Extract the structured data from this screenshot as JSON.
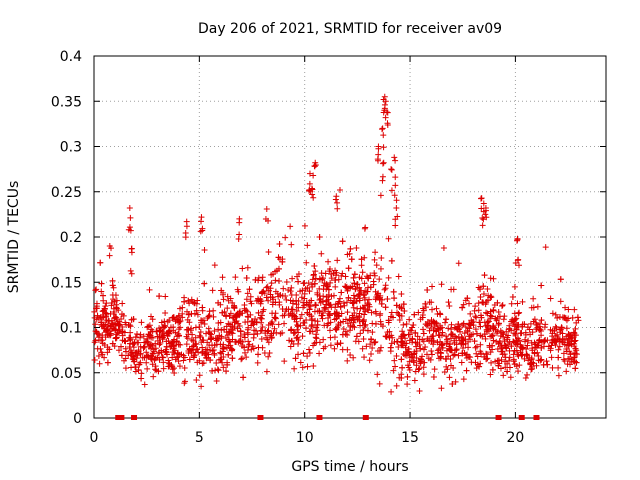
{
  "chart_data": {
    "type": "scatter",
    "title": "Day 206 of 2021, SRMTID for receiver av09",
    "xlabel": "GPS time / hours",
    "ylabel": "SRMTID / TECUs",
    "xlim": [
      0,
      24.3
    ],
    "ylim": [
      0,
      0.4
    ],
    "xticks": [
      0,
      5,
      10,
      15,
      20
    ],
    "xtick_labels": [
      "0",
      "5",
      "10",
      "15",
      "20"
    ],
    "yticks": [
      0,
      0.05,
      0.1,
      0.15,
      0.2,
      0.25,
      0.3,
      0.35,
      0.4
    ],
    "ytick_labels": [
      "0",
      "0.05",
      "0.1",
      "0.15",
      "0.2",
      "0.25",
      "0.3",
      "0.35",
      "0.4"
    ],
    "grid": true,
    "marker": "plus",
    "color": "#dd0000",
    "series": [
      {
        "name": "SRMTID",
        "profile_hours": [
          0,
          0.5,
          1,
          1.5,
          2,
          2.5,
          3,
          3.5,
          4,
          4.5,
          5,
          5.5,
          6,
          6.5,
          7,
          7.5,
          8,
          8.5,
          9,
          9.5,
          10,
          10.5,
          11,
          11.5,
          12,
          12.5,
          13,
          13.5,
          14,
          14.5,
          15,
          15.5,
          16,
          16.5,
          17,
          17.5,
          18,
          18.5,
          19,
          19.5,
          20,
          20.5,
          21,
          21.5,
          22,
          22.5,
          23
        ],
        "profile_typical": [
          0.1,
          0.1,
          0.11,
          0.09,
          0.07,
          0.075,
          0.08,
          0.085,
          0.09,
          0.1,
          0.085,
          0.085,
          0.09,
          0.1,
          0.1,
          0.1,
          0.11,
          0.13,
          0.12,
          0.11,
          0.12,
          0.12,
          0.13,
          0.12,
          0.12,
          0.12,
          0.12,
          0.13,
          0.1,
          0.09,
          0.08,
          0.08,
          0.09,
          0.085,
          0.08,
          0.09,
          0.1,
          0.1,
          0.09,
          0.08,
          0.09,
          0.09,
          0.085,
          0.09,
          0.09,
          0.08,
          0.08
        ],
        "profile_spread": [
          0.035,
          0.04,
          0.04,
          0.035,
          0.025,
          0.03,
          0.03,
          0.035,
          0.04,
          0.045,
          0.04,
          0.04,
          0.045,
          0.045,
          0.045,
          0.045,
          0.045,
          0.05,
          0.05,
          0.05,
          0.06,
          0.06,
          0.05,
          0.05,
          0.05,
          0.05,
          0.055,
          0.07,
          0.06,
          0.05,
          0.04,
          0.04,
          0.04,
          0.04,
          0.04,
          0.04,
          0.045,
          0.05,
          0.045,
          0.04,
          0.04,
          0.045,
          0.04,
          0.04,
          0.04,
          0.035,
          0.035
        ],
        "sample_count": 2400,
        "peaks": [
          {
            "x": 0.75,
            "y": 0.19
          },
          {
            "x": 1.7,
            "y": 0.232
          },
          {
            "x": 1.75,
            "y": 0.207
          },
          {
            "x": 1.8,
            "y": 0.183
          },
          {
            "x": 4.4,
            "y": 0.217
          },
          {
            "x": 5.1,
            "y": 0.222
          },
          {
            "x": 6.9,
            "y": 0.22
          },
          {
            "x": 8.2,
            "y": 0.231
          },
          {
            "x": 10.25,
            "y": 0.27
          },
          {
            "x": 10.4,
            "y": 0.268
          },
          {
            "x": 10.5,
            "y": 0.282
          },
          {
            "x": 11.5,
            "y": 0.245
          },
          {
            "x": 13.5,
            "y": 0.3
          },
          {
            "x": 13.7,
            "y": 0.32
          },
          {
            "x": 13.75,
            "y": 0.282
          },
          {
            "x": 13.8,
            "y": 0.355
          },
          {
            "x": 13.85,
            "y": 0.35
          },
          {
            "x": 13.9,
            "y": 0.338
          },
          {
            "x": 14.1,
            "y": 0.275
          },
          {
            "x": 14.25,
            "y": 0.288
          },
          {
            "x": 14.3,
            "y": 0.257
          },
          {
            "x": 14.35,
            "y": 0.232
          },
          {
            "x": 18.4,
            "y": 0.243
          },
          {
            "x": 18.5,
            "y": 0.237
          },
          {
            "x": 18.6,
            "y": 0.232
          },
          {
            "x": 20.1,
            "y": 0.198
          }
        ],
        "zero_marks": [
          1.15,
          1.3,
          1.9,
          7.9,
          10.7,
          12.9,
          19.2,
          20.3,
          21.0
        ]
      }
    ]
  }
}
